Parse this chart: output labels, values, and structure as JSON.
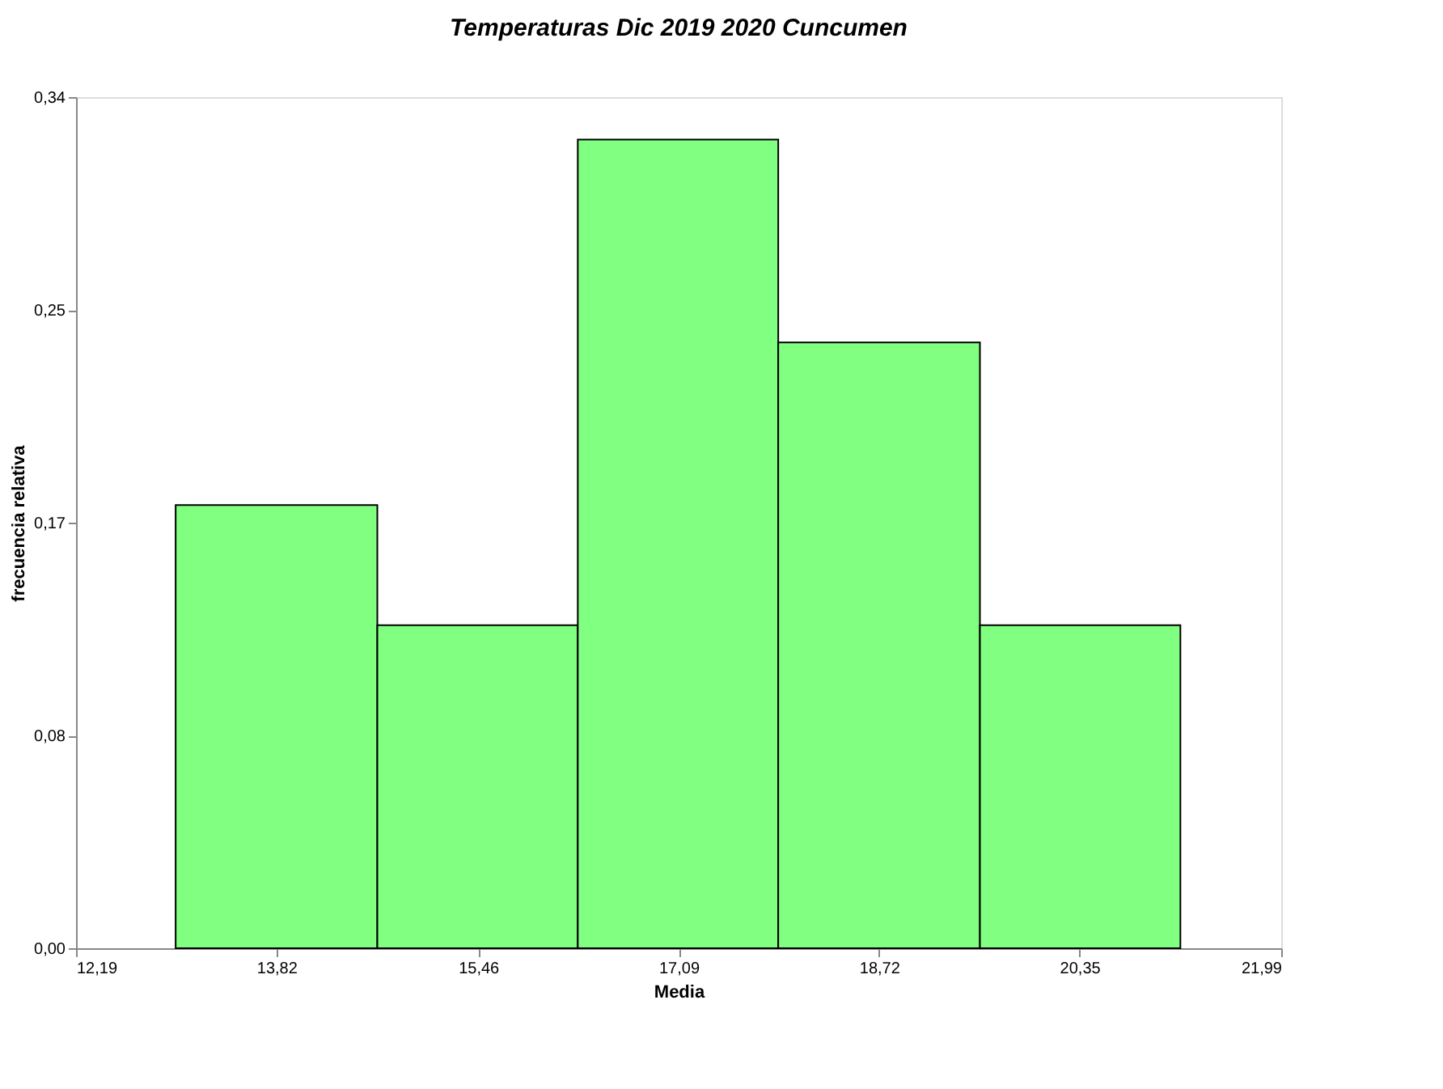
{
  "chart_data": {
    "type": "histogram",
    "title": "Temperaturas Dic 2019 2020 Cuncumen",
    "xlabel": "Media",
    "ylabel": "frecuencia relativa",
    "bins": [
      13.0,
      14.64,
      16.27,
      17.9,
      19.54,
      21.17
    ],
    "values": [
      0.177,
      0.129,
      0.323,
      0.242,
      0.129
    ],
    "color": "#80ff80",
    "xlim": [
      12.19,
      21.99
    ],
    "xticks": [
      {
        "value": 12.19,
        "label": "12,19"
      },
      {
        "value": 13.82,
        "label": "13,82"
      },
      {
        "value": 15.46,
        "label": "15,46"
      },
      {
        "value": 17.09,
        "label": "17,09"
      },
      {
        "value": 18.72,
        "label": "18,72"
      },
      {
        "value": 20.35,
        "label": "20,35"
      },
      {
        "value": 21.99,
        "label": "21,99"
      }
    ],
    "ylim": [
      0,
      0.34
    ],
    "yticks": [
      {
        "value": 0,
        "label": "0,00"
      },
      {
        "value": 0.085,
        "label": "0,08"
      },
      {
        "value": 0.17,
        "label": "0,17"
      },
      {
        "value": 0.255,
        "label": "0,25"
      },
      {
        "value": 0.34,
        "label": "0,34"
      }
    ],
    "grid": false
  }
}
